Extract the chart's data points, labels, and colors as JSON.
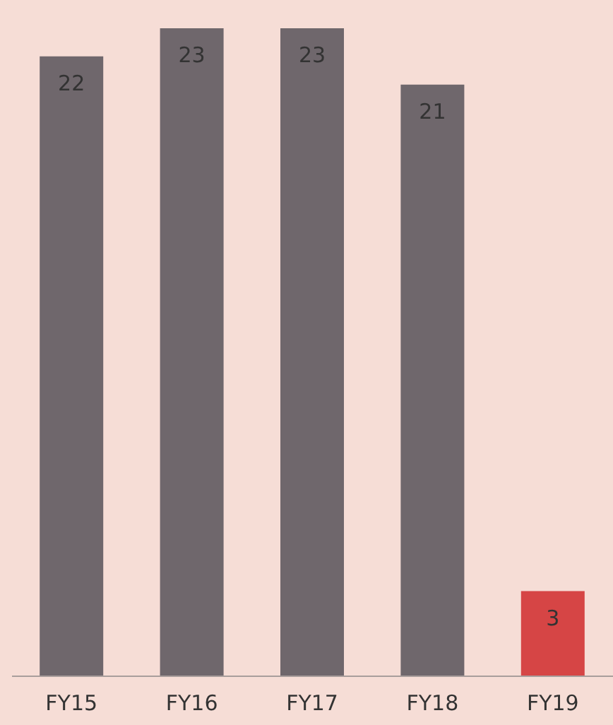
{
  "chart_data": {
    "type": "bar",
    "categories": [
      "FY15",
      "FY16",
      "FY17",
      "FY18",
      "FY19"
    ],
    "values": [
      22,
      23,
      23,
      21,
      3
    ],
    "colors": [
      "#6f676c",
      "#6f676c",
      "#6f676c",
      "#6f676c",
      "#d64545"
    ],
    "data_labels": true
  }
}
